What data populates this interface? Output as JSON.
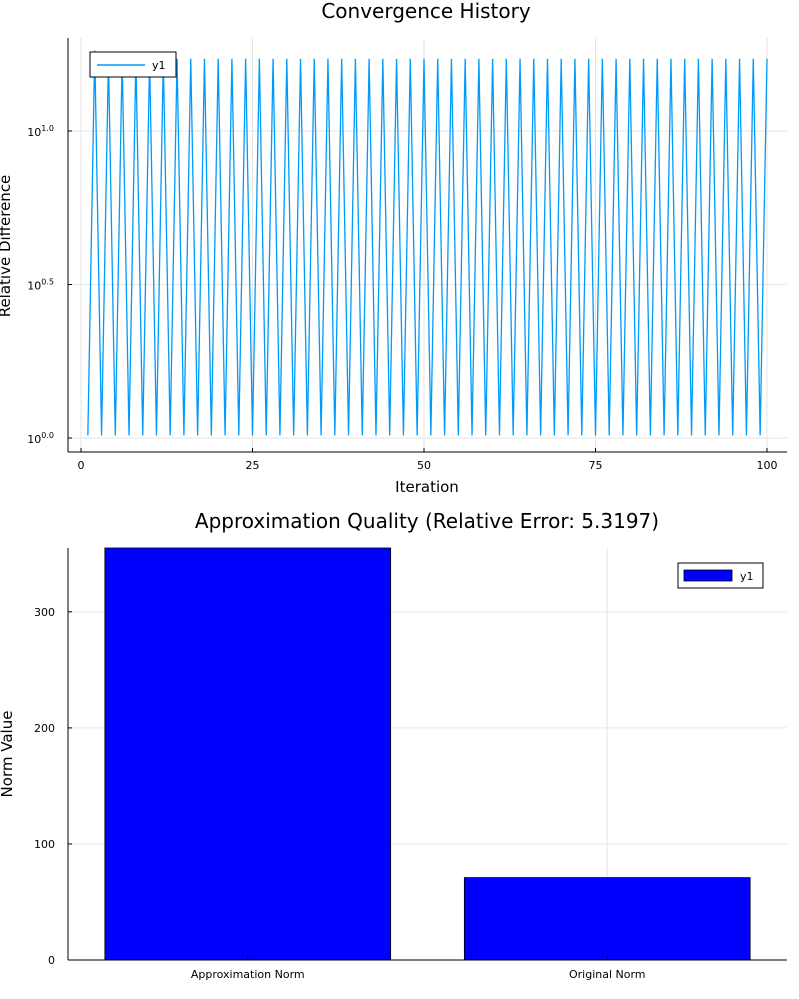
{
  "chart_data": [
    {
      "type": "line",
      "title": "Convergence History",
      "xlabel": "Iteration",
      "ylabel": "Relative Difference",
      "yscale": "log10",
      "xlim": [
        0,
        100
      ],
      "ylim": [
        1.0,
        18.5
      ],
      "x_ticks": [
        0,
        25,
        50,
        75,
        100
      ],
      "x_tick_labels": [
        "0",
        "25",
        "50",
        "75",
        "100"
      ],
      "y_ticks": [
        1.0,
        3.1623,
        10.0
      ],
      "y_tick_labels": [
        {
          "base": "10",
          "exp": "0.0"
        },
        {
          "base": "10",
          "exp": "0.5"
        },
        {
          "base": "10",
          "exp": "1.0"
        }
      ],
      "grid": true,
      "legend_position": "top-left",
      "series": [
        {
          "name": "y1",
          "color": "#009af9",
          "pattern": "alternating",
          "x_start": 1,
          "x_end": 100,
          "low_value": 1.02,
          "high_value": 17.2,
          "first_peak_value": 18.3
        }
      ]
    },
    {
      "type": "bar",
      "title": "Approximation Quality (Relative Error: 5.3197)",
      "xlabel": "",
      "ylabel": "Norm Value",
      "categories": [
        "Approximation Norm",
        "Original Norm"
      ],
      "ylim": [
        0,
        355
      ],
      "y_ticks": [
        0,
        100,
        200,
        300
      ],
      "y_tick_labels": [
        "0",
        "100",
        "200",
        "300"
      ],
      "grid": true,
      "legend_position": "top-right",
      "series": [
        {
          "name": "y1",
          "color": "#0000ff",
          "values": [
            355,
            71
          ]
        }
      ]
    }
  ]
}
